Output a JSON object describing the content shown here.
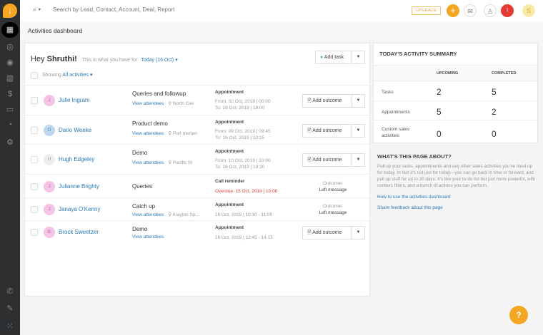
{
  "search": {
    "placeholder": "Search by Lead, Contact, Account, Deal, Report"
  },
  "topbar": {
    "upgrade": "UPGRADE",
    "notif_count": "1",
    "avatar": "S"
  },
  "page_title": "Activities dashboard",
  "greeting": {
    "hey": "Hey",
    "name": "Shruthi!",
    "sub": "This is what you have for",
    "date": "Today (16 Oct)",
    "showing": "Showing",
    "filter": "All activities"
  },
  "add_task": "Add task",
  "add_outcome": "Add outcome",
  "outcome_label": "Outcome:",
  "view_attendees": "View attendees",
  "rows": [
    {
      "initial": "J",
      "name": "Julie Ingram",
      "subject": "Queries and followup",
      "location": "North Cier",
      "type": "Appointment",
      "line1": "From: 02 Oct, 2019 | 00:00",
      "line2": "To: 16 Oct, 2019 | 18:00",
      "outcome": ""
    },
    {
      "initial": "D",
      "name": "Dario Weeke",
      "subject": "Product demo",
      "location": "Port mertan",
      "type": "Appointment",
      "line1": "From: 09 Oct, 2019 | 09:45",
      "line2": "To: 16 Oct, 2019 | 10:15",
      "outcome": ""
    },
    {
      "initial": "H",
      "name": "Hugh Edgeley",
      "subject": "Demo",
      "location": "Pacific St",
      "type": "Appointment",
      "line1": "From: 10 Oct, 2019 | 10:00",
      "line2": "To: 16 Oct, 2019 | 10:30",
      "outcome": ""
    },
    {
      "initial": "J",
      "name": "Julianne Brighty",
      "subject": "Queries",
      "location": "",
      "type": "Call reminder",
      "line1": "Overdue: 15 Oct, 2019 | 10:00",
      "line2": "",
      "outcome": "Left message"
    },
    {
      "initial": "J",
      "name": "Janaya O'Kenny",
      "subject": "Catch up",
      "location": "Klayton Sp...",
      "type": "Appointment",
      "line1": "16 Oct, 2019 | 10:30 - 11:00",
      "line2": "",
      "outcome": "Left message"
    },
    {
      "initial": "B",
      "name": "Brock Sweetzer",
      "subject": "Demo",
      "location": "",
      "type": "Appointment",
      "line1": "16 Oct, 2019 | 12:45 - 14:15",
      "line2": "",
      "outcome": ""
    }
  ],
  "summary": {
    "title": "TODAY'S ACTIVITY SUMMARY",
    "col_upcoming": "UPCOMING",
    "col_completed": "COMPLETED",
    "rows": [
      {
        "label": "Tasks",
        "upcoming": "2",
        "completed": "5"
      },
      {
        "label": "Appointments",
        "upcoming": "5",
        "completed": "2"
      },
      {
        "label": "Custom sales activities",
        "upcoming": "0",
        "completed": "0"
      }
    ]
  },
  "about": {
    "title": "WHAT'S THIS PAGE ABOUT?",
    "text": "Pull up your tasks, appointments and any other sales activities you've lined up for today. In fact it's not just for today—you can go back in time or forward, and pull up stuff for up to 30 days. It's like your to-do list but just more powerful, with context, filters, and a bunch of actions you can perform.",
    "link1": "How to use the activities dashboard",
    "link2": "Share feedback about this page"
  },
  "help": "?",
  "colors": {
    "accent": "#f5a623",
    "link": "#2a7ab9",
    "overdue": "#e53935",
    "sidebar": "#2e2f31"
  }
}
